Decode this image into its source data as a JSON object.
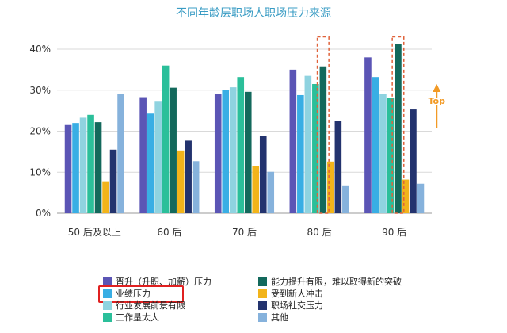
{
  "chart_data": {
    "type": "bar",
    "title": "不同年龄层职场人职场压力来源",
    "categories": [
      "50 后及以上",
      "60 后",
      "70 后",
      "80 后",
      "90 后"
    ],
    "ylim": [
      0,
      40
    ],
    "yticks": [
      "0%",
      "10%",
      "20%",
      "30%",
      "40%"
    ],
    "grid": true,
    "legend_position": "bottom",
    "series": [
      {
        "name": "晋升（升职、加薪）压力",
        "color": "#5b55b5",
        "values": [
          21.5,
          28.3,
          29.0,
          35.0,
          38.0
        ]
      },
      {
        "name": "业绩压力",
        "color": "#39aee4",
        "values": [
          22.0,
          24.3,
          30.0,
          28.8,
          33.2
        ]
      },
      {
        "name": "行业发展前景有限",
        "color": "#8fd3e0",
        "values": [
          23.3,
          27.2,
          30.7,
          33.5,
          29.0
        ]
      },
      {
        "name": "工作量太大",
        "color": "#2bbf9a",
        "values": [
          24.0,
          36.0,
          33.2,
          31.5,
          28.2
        ]
      },
      {
        "name": "能力提升有限，难以取得新的突破",
        "color": "#13695c",
        "values": [
          22.2,
          30.6,
          29.6,
          35.8,
          41.2
        ]
      },
      {
        "name": "受到新人冲击",
        "color": "#f2b41a",
        "values": [
          7.8,
          15.3,
          11.5,
          12.6,
          8.2
        ]
      },
      {
        "name": "职场社交压力",
        "color": "#23336e",
        "values": [
          15.5,
          17.7,
          18.9,
          22.6,
          25.3
        ]
      },
      {
        "name": "其他",
        "color": "#86b2dc",
        "values": [
          29.0,
          12.7,
          10.1,
          6.8,
          7.2
        ]
      }
    ],
    "highlight_boxes": [
      {
        "category": "80 后",
        "series": "能力提升有限，难以取得新的突破"
      },
      {
        "category": "90 后",
        "series": "能力提升有限，难以取得新的突破"
      }
    ],
    "annotation": {
      "text": "Top",
      "color": "#f29a25"
    },
    "legend_highlight": "业绩压力"
  }
}
